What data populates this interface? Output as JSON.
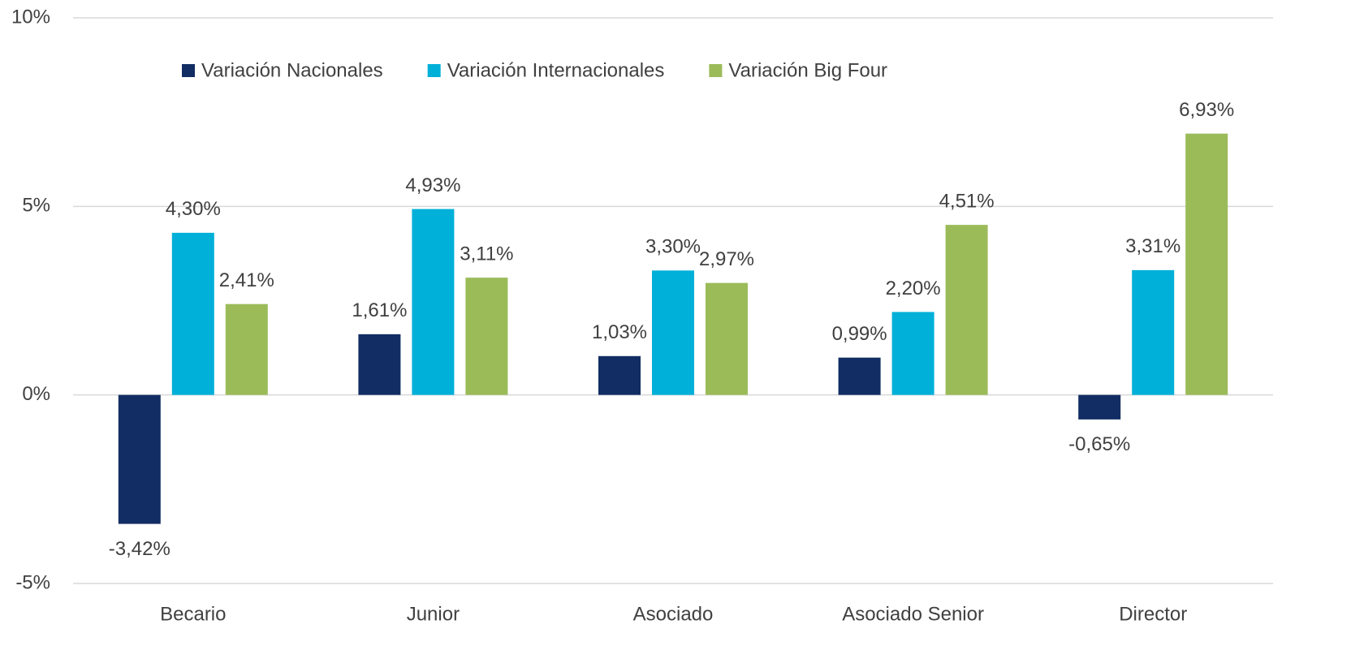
{
  "chart_data": {
    "type": "bar",
    "categories": [
      "Becario",
      "Junior",
      "Asociado",
      "Asociado Senior",
      "Director"
    ],
    "series": [
      {
        "name": "Variación Nacionales",
        "color": "#122d63",
        "values": [
          -3.42,
          1.61,
          1.03,
          0.99,
          -0.65
        ],
        "value_labels": [
          "-3,42%",
          "1,61%",
          "1,03%",
          "0,99%",
          "-0,65%"
        ]
      },
      {
        "name": "Variación Internacionales",
        "color": "#00b0d8",
        "values": [
          4.3,
          4.93,
          3.3,
          2.2,
          3.31
        ],
        "value_labels": [
          "4,30%",
          "4,93%",
          "3,30%",
          "2,20%",
          "3,31%"
        ]
      },
      {
        "name": "Variación Big Four",
        "color": "#9bbb59",
        "values": [
          2.41,
          3.11,
          2.97,
          4.51,
          6.93
        ],
        "value_labels": [
          "2,41%",
          "3,11%",
          "2,97%",
          "4,51%",
          "6,93%"
        ]
      }
    ],
    "ylim": [
      -5,
      10
    ],
    "yticks": [
      {
        "value": -5,
        "label": "-5%"
      },
      {
        "value": 0,
        "label": "0%"
      },
      {
        "value": 5,
        "label": "5%"
      },
      {
        "value": 10,
        "label": "10%"
      }
    ],
    "grid": true,
    "legend": "top"
  }
}
